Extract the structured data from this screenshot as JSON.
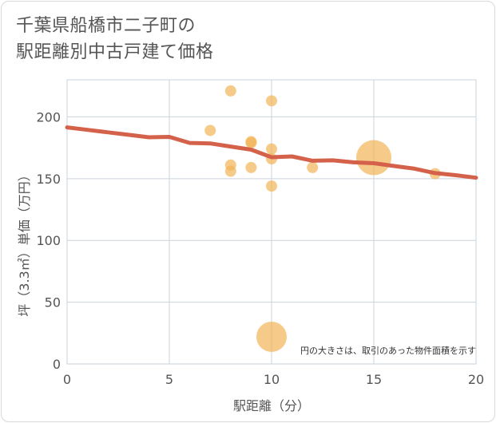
{
  "chart_data": {
    "type": "scatter",
    "title_lines": [
      "千葉県船橋市二子町の",
      "駅距離別中古戸建て価格"
    ],
    "xlabel": "駅距離（分）",
    "ylabel": "坪（3.3㎡）単価（万円）",
    "xlim": [
      0,
      20
    ],
    "ylim": [
      0,
      230
    ],
    "x_ticks": [
      0,
      5,
      10,
      15,
      20
    ],
    "y_ticks": [
      0,
      50,
      100,
      150,
      200
    ],
    "grid": true,
    "note": "円の大きさは、取引のあった物件面積を示す",
    "points": [
      {
        "x": 8,
        "y": 221,
        "size": 1
      },
      {
        "x": 10,
        "y": 213,
        "size": 1
      },
      {
        "x": 7,
        "y": 189,
        "size": 1
      },
      {
        "x": 9,
        "y": 180,
        "size": 1
      },
      {
        "x": 9,
        "y": 179,
        "size": 1
      },
      {
        "x": 10,
        "y": 174,
        "size": 1
      },
      {
        "x": 10,
        "y": 166,
        "size": 1
      },
      {
        "x": 8,
        "y": 161,
        "size": 1
      },
      {
        "x": 8,
        "y": 156,
        "size": 1
      },
      {
        "x": 9,
        "y": 159,
        "size": 1
      },
      {
        "x": 12,
        "y": 159,
        "size": 1
      },
      {
        "x": 10,
        "y": 144,
        "size": 1
      },
      {
        "x": 18,
        "y": 154,
        "size": 1
      },
      {
        "x": 15,
        "y": 167,
        "size": 4
      },
      {
        "x": 10,
        "y": 22,
        "size": 3
      }
    ],
    "trend": {
      "x": [
        0,
        1,
        2,
        3,
        4,
        5,
        6,
        7,
        8,
        9,
        10,
        11,
        12,
        13,
        14,
        15,
        16,
        17,
        18,
        19,
        20
      ],
      "y": [
        191.5,
        189.5,
        187.5,
        185.5,
        183.5,
        183.8,
        178.9,
        178.5,
        176.0,
        173.5,
        167.3,
        168.0,
        164.5,
        164.8,
        163.2,
        162.5,
        160.2,
        158.0,
        154.5,
        152.8,
        150.7
      ]
    },
    "colors": {
      "points": "#f2b55a",
      "trend": "#d4614a",
      "grid": "#c9d3dc",
      "tick_text": "#555555"
    }
  }
}
